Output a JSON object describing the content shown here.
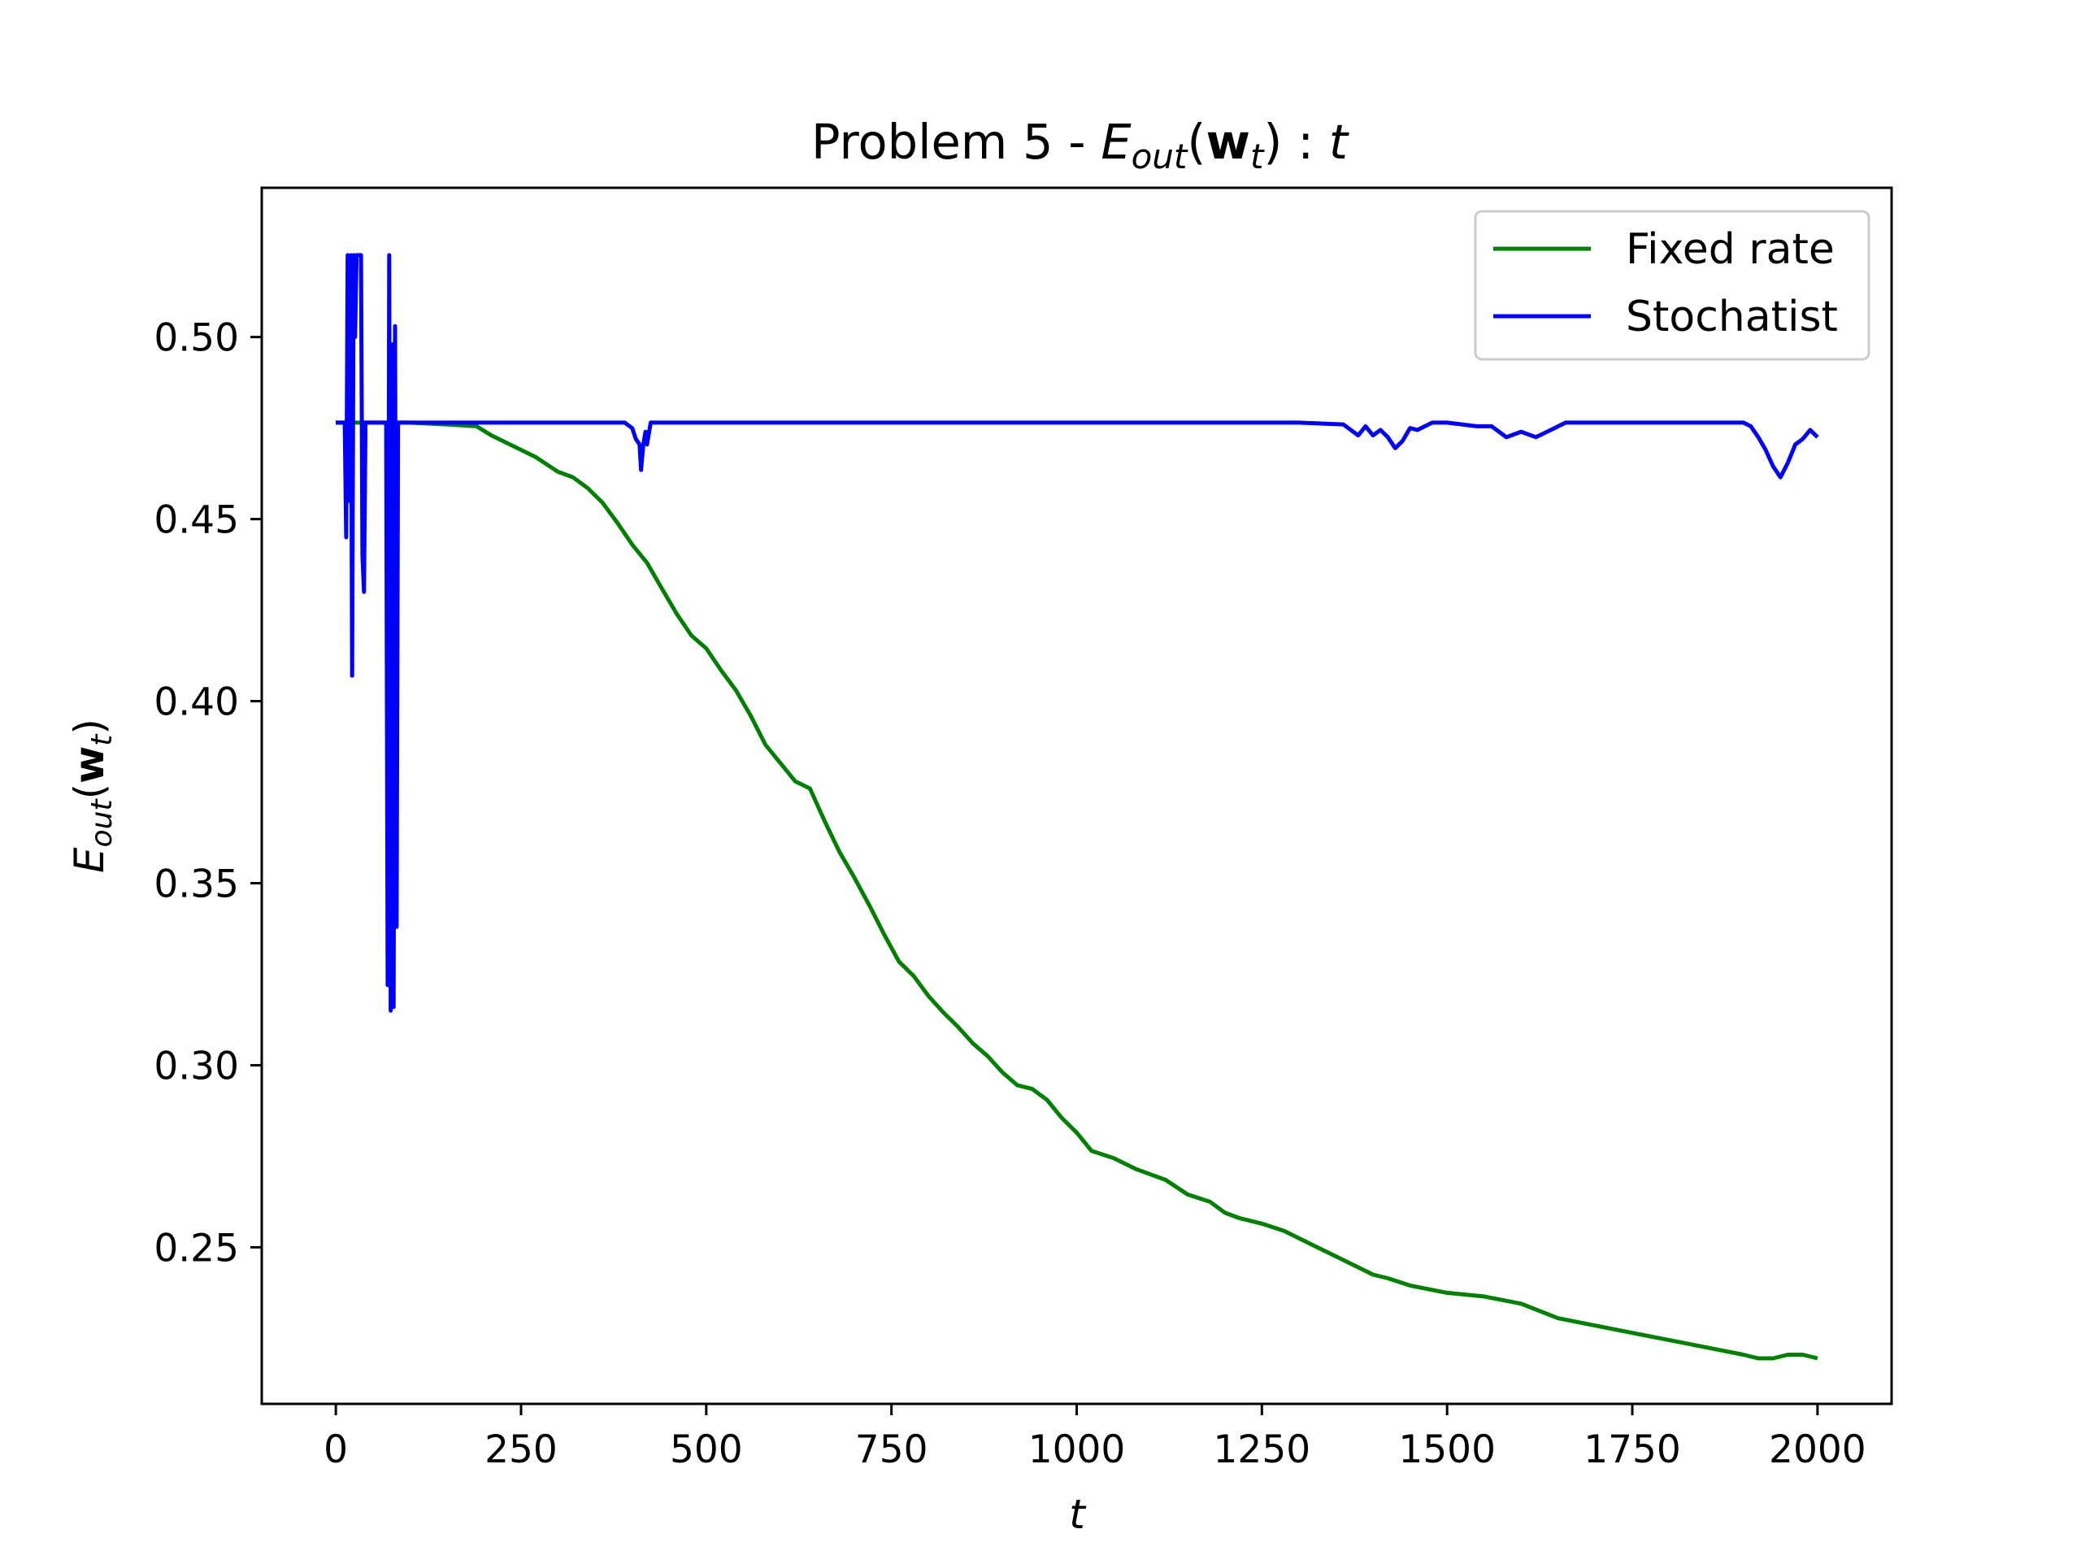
{
  "chart_data": {
    "type": "line",
    "title": {
      "prefix": "Problem 5 - ",
      "E": "E",
      "sub": "out",
      "open": "(",
      "w": "w",
      "wsub": "t",
      "close": ")",
      "colon": " : ",
      "t": "t"
    },
    "xlabel": "t",
    "ylabel": {
      "E": "E",
      "sub": "out",
      "open": "(",
      "w": "w",
      "wsub": "t",
      "close": ")"
    },
    "xlim": [
      -100,
      2100
    ],
    "ylim": [
      0.207,
      0.541
    ],
    "xticks": [
      0,
      250,
      500,
      750,
      1000,
      1250,
      1500,
      1750,
      2000
    ],
    "xtick_labels": [
      "0",
      "250",
      "500",
      "750",
      "1000",
      "1250",
      "1500",
      "1750",
      "2000"
    ],
    "yticks": [
      0.25,
      0.3,
      0.35,
      0.4,
      0.45,
      0.5
    ],
    "ytick_labels": [
      "0.25",
      "0.30",
      "0.35",
      "0.40",
      "0.45",
      "0.50"
    ],
    "grid": false,
    "legend_position": "top-right",
    "series": [
      {
        "name": "Fixed rate",
        "color": "#008000",
        "x": [
          0,
          100,
          150,
          190,
          210,
          240,
          270,
          300,
          320,
          340,
          360,
          380,
          400,
          420,
          440,
          460,
          480,
          500,
          520,
          540,
          560,
          580,
          600,
          620,
          640,
          660,
          680,
          700,
          720,
          740,
          760,
          780,
          800,
          820,
          840,
          860,
          880,
          900,
          920,
          940,
          960,
          980,
          1000,
          1020,
          1050,
          1080,
          1100,
          1120,
          1150,
          1180,
          1200,
          1220,
          1250,
          1280,
          1300,
          1320,
          1350,
          1380,
          1400,
          1420,
          1450,
          1500,
          1550,
          1600,
          1650,
          1700,
          1750,
          1800,
          1850,
          1900,
          1920,
          1940,
          1960,
          1980,
          2000
        ],
        "y": [
          0.4765,
          0.4765,
          0.476,
          0.4755,
          0.473,
          0.47,
          0.467,
          0.463,
          0.4615,
          0.4585,
          0.4545,
          0.449,
          0.443,
          0.438,
          0.431,
          0.424,
          0.418,
          0.4145,
          0.4085,
          0.403,
          0.396,
          0.388,
          0.383,
          0.378,
          0.376,
          0.367,
          0.3585,
          0.3515,
          0.344,
          0.336,
          0.3285,
          0.3245,
          0.319,
          0.3145,
          0.3105,
          0.306,
          0.3025,
          0.298,
          0.2945,
          0.2935,
          0.2905,
          0.2855,
          0.2815,
          0.2765,
          0.2745,
          0.2715,
          0.27,
          0.2685,
          0.2645,
          0.2625,
          0.2595,
          0.258,
          0.2565,
          0.2545,
          0.2525,
          0.2505,
          0.2475,
          0.2445,
          0.2425,
          0.2415,
          0.2395,
          0.2375,
          0.2365,
          0.2345,
          0.2305,
          0.2285,
          0.2265,
          0.2245,
          0.2225,
          0.2205,
          0.2195,
          0.2195,
          0.2205,
          0.2205,
          0.2195
        ]
      },
      {
        "name": "Stochatist",
        "color": "#0000ff",
        "x": [
          0,
          12,
          14,
          16,
          18,
          20,
          22,
          24,
          26,
          28,
          30,
          32,
          34,
          36,
          38,
          40,
          42,
          44,
          50,
          60,
          68,
          70,
          72,
          74,
          76,
          78,
          80,
          82,
          84,
          86,
          88,
          90,
          100,
          200,
          300,
          350,
          390,
          400,
          405,
          410,
          412,
          415,
          418,
          420,
          425,
          430,
          440,
          460,
          600,
          950,
          1300,
          1360,
          1380,
          1390,
          1400,
          1410,
          1420,
          1430,
          1440,
          1450,
          1460,
          1480,
          1500,
          1540,
          1560,
          1580,
          1600,
          1620,
          1640,
          1660,
          1700,
          1800,
          1900,
          1910,
          1920,
          1930,
          1940,
          1950,
          1960,
          1965,
          1970,
          1980,
          1990,
          2000
        ],
        "y": [
          0.4765,
          0.4765,
          0.445,
          0.5225,
          0.455,
          0.5225,
          0.407,
          0.5225,
          0.5,
          0.5225,
          0.5225,
          0.5225,
          0.5225,
          0.44,
          0.43,
          0.4765,
          0.4765,
          0.4765,
          0.4765,
          0.4765,
          0.4765,
          0.322,
          0.5225,
          0.315,
          0.498,
          0.316,
          0.503,
          0.338,
          0.4765,
          0.4765,
          0.4765,
          0.4765,
          0.4765,
          0.4765,
          0.4765,
          0.4765,
          0.4765,
          0.475,
          0.472,
          0.4705,
          0.4635,
          0.4705,
          0.474,
          0.4705,
          0.4765,
          0.4765,
          0.4765,
          0.4765,
          0.4765,
          0.4765,
          0.4765,
          0.476,
          0.473,
          0.4755,
          0.473,
          0.4745,
          0.4725,
          0.4695,
          0.4715,
          0.475,
          0.4745,
          0.4765,
          0.4765,
          0.4755,
          0.4755,
          0.4725,
          0.474,
          0.4725,
          0.4745,
          0.4765,
          0.4765,
          0.4765,
          0.4765,
          0.4755,
          0.4725,
          0.469,
          0.4645,
          0.4615,
          0.4655,
          0.468,
          0.4705,
          0.472,
          0.4745,
          0.4725
        ]
      }
    ]
  }
}
